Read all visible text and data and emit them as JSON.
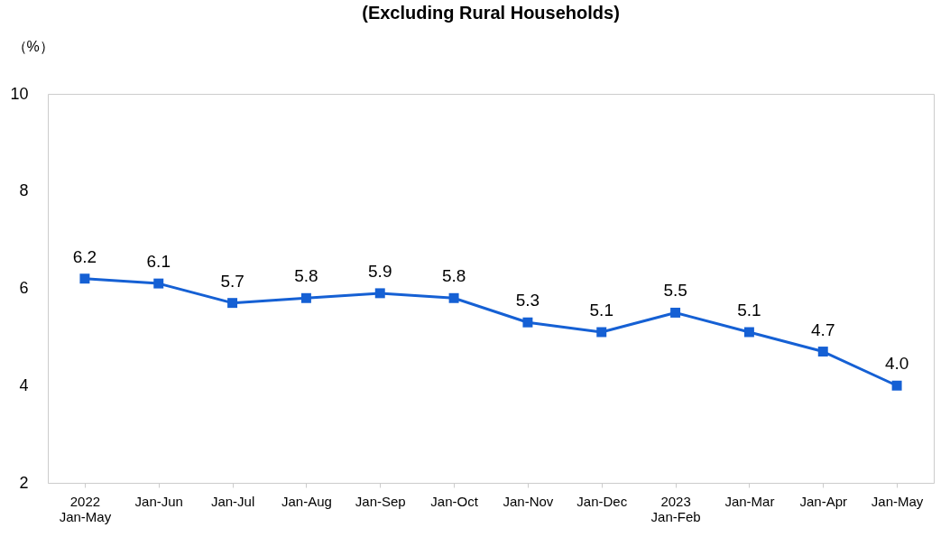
{
  "chart_data": {
    "type": "line",
    "title": "(Excluding Rural Households)",
    "ylabel": "（%）",
    "categories": [
      "2022\nJan-May",
      "Jan-Jun",
      "Jan-Jul",
      "Jan-Aug",
      "Jan-Sep",
      "Jan-Oct",
      "Jan-Nov",
      "Jan-Dec",
      "2023\nJan-Feb",
      "Jan-Mar",
      "Jan-Apr",
      "Jan-May"
    ],
    "series": [
      {
        "color": "#1560d4",
        "values": [
          6.2,
          6.1,
          5.7,
          5.8,
          5.9,
          5.8,
          5.3,
          5.1,
          5.5,
          5.1,
          4.7,
          4.0
        ],
        "value_labels": [
          "6.2",
          "6.1",
          "5.7",
          "5.8",
          "5.9",
          "5.8",
          "5.3",
          "5.1",
          "5.5",
          "5.1",
          "4.7",
          "4.0"
        ]
      }
    ],
    "ylim": [
      2,
      10
    ],
    "yticks": [
      2,
      4,
      6,
      8,
      10
    ],
    "grid": false,
    "marker": "square",
    "line_style": "solid"
  }
}
